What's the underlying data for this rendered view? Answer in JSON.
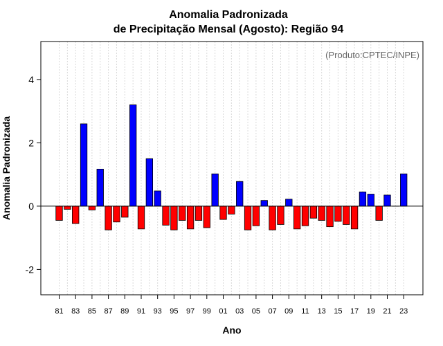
{
  "chart_data": {
    "type": "bar",
    "title_line1": "Anomalia Padronizada",
    "title_line2": "de Precipitação Mensal (Agosto): Região 94",
    "xlabel": "Ano",
    "ylabel": "Anomalia Padronizada",
    "credit": "(Produto:CPTEC/INPE)",
    "ylim": [
      -2.8,
      5.2
    ],
    "yticks": [
      -2,
      0,
      2,
      4
    ],
    "ytick_labels": [
      "-2",
      "0",
      "2",
      "4"
    ],
    "categories": [
      "1981",
      "1982",
      "1983",
      "1984",
      "1985",
      "1986",
      "1987",
      "1988",
      "1989",
      "1990",
      "1991",
      "1992",
      "1993",
      "1994",
      "1995",
      "1996",
      "1997",
      "1998",
      "1999",
      "2000",
      "2001",
      "2002",
      "2003",
      "2004",
      "2005",
      "2006",
      "2007",
      "2008",
      "2009",
      "2010",
      "2011",
      "2012",
      "2013",
      "2014",
      "2015",
      "2016",
      "2017",
      "2018",
      "2019",
      "2020",
      "2021",
      "2022",
      "2023"
    ],
    "xtick_labels": [
      "81",
      "83",
      "85",
      "87",
      "89",
      "91",
      "93",
      "95",
      "97",
      "99",
      "01",
      "03",
      "05",
      "07",
      "09",
      "11",
      "13",
      "15",
      "17",
      "19",
      "21",
      "23"
    ],
    "values": [
      -0.45,
      -0.1,
      -0.55,
      2.6,
      -0.12,
      1.17,
      -0.75,
      -0.5,
      -0.35,
      3.2,
      -0.72,
      1.5,
      0.48,
      -0.6,
      -0.75,
      -0.45,
      -0.72,
      -0.45,
      -0.68,
      1.02,
      -0.42,
      -0.25,
      0.78,
      -0.75,
      -0.62,
      0.18,
      -0.75,
      -0.58,
      0.22,
      -0.72,
      -0.62,
      -0.38,
      -0.45,
      -0.65,
      -0.48,
      -0.58,
      -0.72,
      0.45,
      0.38,
      -0.45,
      0.35,
      0.0,
      1.02
    ],
    "colors": {
      "positive": "#0000ff",
      "negative": "#ff0000",
      "grid": "#d9d9d9"
    }
  }
}
